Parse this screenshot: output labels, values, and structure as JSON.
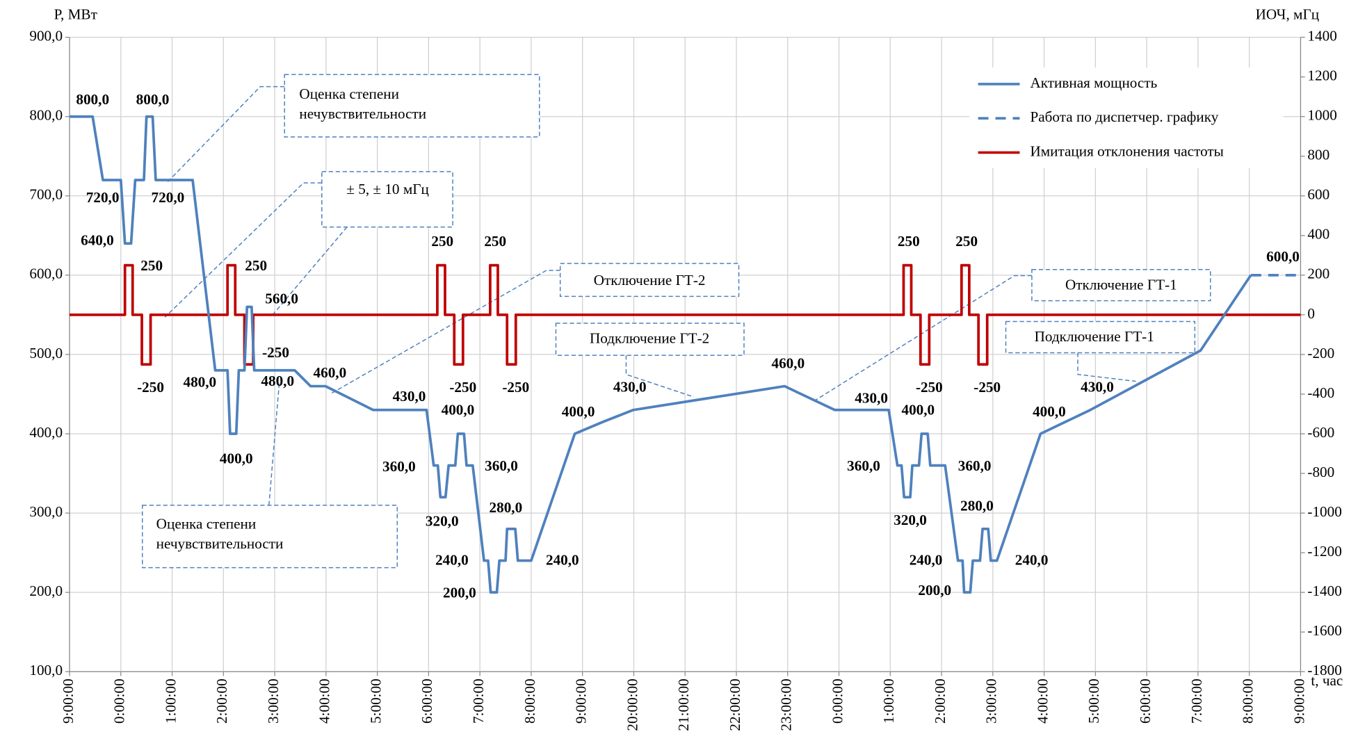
{
  "chart_data": {
    "type": "line",
    "y_label": "P,  МВт",
    "y2_label": "ИОЧ, мГц",
    "x_label": "t, час",
    "xlim": [
      0,
      24
    ],
    "xticks": [
      {
        "value": 0,
        "label": "9:00:00"
      },
      {
        "value": 1,
        "label": "0:00:00"
      },
      {
        "value": 2,
        "label": "1:00:00"
      },
      {
        "value": 3,
        "label": "2:00:00"
      },
      {
        "value": 4,
        "label": "3:00:00"
      },
      {
        "value": 5,
        "label": "4:00:00"
      },
      {
        "value": 6,
        "label": "5:00:00"
      },
      {
        "value": 7,
        "label": "6:00:00"
      },
      {
        "value": 8,
        "label": "7:00:00"
      },
      {
        "value": 9,
        "label": "8:00:00"
      },
      {
        "value": 10,
        "label": "9:00:00"
      },
      {
        "value": 11,
        "label": "20:00:00"
      },
      {
        "value": 12,
        "label": "21:00:00"
      },
      {
        "value": 13,
        "label": "22:00:00"
      },
      {
        "value": 14,
        "label": "23:00:00"
      },
      {
        "value": 15,
        "label": "0:00:00"
      },
      {
        "value": 16,
        "label": "1:00:00"
      },
      {
        "value": 17,
        "label": "2:00:00"
      },
      {
        "value": 18,
        "label": "3:00:00"
      },
      {
        "value": 19,
        "label": "4:00:00"
      },
      {
        "value": 20,
        "label": "5:00:00"
      },
      {
        "value": 21,
        "label": "6:00:00"
      },
      {
        "value": 22,
        "label": "7:00:00"
      },
      {
        "value": 23,
        "label": "8:00:00"
      },
      {
        "value": 24,
        "label": "9:00:00"
      }
    ],
    "ylim": [
      100,
      900
    ],
    "yticks": [
      {
        "value": 100,
        "label": "100,0"
      },
      {
        "value": 200,
        "label": "200,0"
      },
      {
        "value": 300,
        "label": "300,0"
      },
      {
        "value": 400,
        "label": "400,0"
      },
      {
        "value": 500,
        "label": "500,0"
      },
      {
        "value": 600,
        "label": "600,0"
      },
      {
        "value": 700,
        "label": "700,0"
      },
      {
        "value": 800,
        "label": "800,0"
      },
      {
        "value": 900,
        "label": "900,0"
      }
    ],
    "y2lim": [
      -1800,
      1400
    ],
    "y2ticks": [
      -1800,
      -1600,
      -1400,
      -1200,
      -1000,
      -800,
      -600,
      -400,
      -200,
      0,
      200,
      400,
      600,
      800,
      1000,
      1200,
      1400
    ],
    "grid": true,
    "legend": "top-right",
    "series": [
      {
        "name": "Активная мощность",
        "color": "#4f81bd",
        "style": "solid",
        "x": [
          0,
          0.45,
          0.65,
          1.0,
          1.08,
          1.2,
          1.28,
          1.45,
          1.5,
          1.62,
          1.68,
          2.4,
          2.84,
          3.08,
          3.13,
          3.25,
          3.3,
          3.41,
          3.46,
          3.55,
          3.6,
          4.39,
          4.7,
          4.99,
          5.92,
          6.96,
          7.1,
          7.18,
          7.23,
          7.33,
          7.39,
          7.52,
          7.57,
          7.69,
          7.74,
          7.86,
          8.08,
          8.16,
          8.21,
          8.33,
          8.38,
          8.5,
          8.53,
          8.69,
          8.74,
          9.0,
          9.85,
          10.4,
          10.99,
          13.94,
          14.92,
          15.97,
          16.14,
          16.22,
          16.27,
          16.39,
          16.43,
          16.56,
          16.61,
          16.73,
          16.78,
          17.07,
          17.32,
          17.41,
          17.44,
          17.56,
          17.61,
          17.75,
          17.8,
          17.91,
          17.96,
          18.08,
          18.93,
          19.9,
          22.05,
          23.03
        ],
        "values": [
          800,
          800,
          720,
          720,
          640,
          640,
          720,
          720,
          800,
          800,
          720,
          720,
          480,
          480,
          400,
          400,
          480,
          480,
          560,
          560,
          480,
          480,
          460,
          460,
          430,
          430,
          360,
          360,
          320,
          320,
          360,
          360,
          400,
          400,
          360,
          360,
          240,
          240,
          200,
          200,
          240,
          240,
          280,
          280,
          240,
          240,
          400,
          415,
          430,
          460,
          430,
          430,
          360,
          360,
          320,
          320,
          360,
          360,
          400,
          400,
          360,
          360,
          240,
          240,
          200,
          200,
          240,
          240,
          280,
          280,
          240,
          240,
          400,
          430,
          505,
          600
        ],
        "value_labels": [
          null,
          "800,0",
          null,
          "720,0",
          null,
          "640,0",
          null,
          null,
          null,
          "800,0",
          "720,0",
          null,
          null,
          "480,0",
          null,
          "400,0",
          null,
          null,
          "560,0",
          null,
          "480,0",
          null,
          null,
          "460,0",
          null,
          "430,0",
          "360,0",
          null,
          null,
          "320,0",
          null,
          null,
          "400,0",
          null,
          null,
          "360,0",
          "240,0",
          null,
          null,
          "200,0",
          null,
          null,
          null,
          "280,0",
          null,
          "240,0",
          "400,0",
          null,
          "430,0",
          "460,0",
          null,
          "430,0",
          "360,0",
          null,
          null,
          "320,0",
          null,
          null,
          "400,0",
          null,
          null,
          "360,0",
          "240,0",
          null,
          null,
          "200,0",
          null,
          null,
          null,
          "280,0",
          null,
          "240,0",
          "400,0",
          "430,0",
          null,
          "600,0"
        ]
      },
      {
        "name": "Работа по диспетчер. графику",
        "color": "#4f81bd",
        "style": "dashed",
        "x": [
          23.03,
          24
        ],
        "values": [
          600,
          600
        ]
      },
      {
        "name": "Имитация отклонения частоты",
        "color": "#c00000",
        "style": "solid",
        "axis": "y2",
        "x": [
          0,
          1.08,
          1.08,
          1.23,
          1.23,
          1.41,
          1.41,
          1.58,
          1.58,
          3.08,
          3.08,
          3.23,
          3.23,
          3.41,
          3.41,
          3.58,
          3.58,
          7.17,
          7.17,
          7.32,
          7.32,
          7.5,
          7.5,
          7.67,
          7.67,
          8.2,
          8.2,
          8.35,
          8.35,
          8.53,
          8.53,
          8.7,
          8.7,
          16.26,
          16.26,
          16.41,
          16.41,
          16.59,
          16.59,
          16.76,
          16.76,
          17.39,
          17.39,
          17.54,
          17.54,
          17.72,
          17.72,
          17.89,
          17.89,
          24
        ],
        "values": [
          0,
          0,
          250,
          250,
          0,
          0,
          -250,
          -250,
          0,
          0,
          250,
          250,
          0,
          0,
          -250,
          -250,
          0,
          0,
          250,
          250,
          0,
          0,
          -250,
          -250,
          0,
          0,
          250,
          250,
          0,
          0,
          -250,
          -250,
          0,
          0,
          250,
          250,
          0,
          0,
          -250,
          -250,
          0,
          0,
          250,
          250,
          0,
          0,
          -250,
          -250,
          0,
          0
        ],
        "value_labels": [
          null,
          null,
          null,
          "250",
          null,
          null,
          null,
          "-250",
          null,
          null,
          null,
          "250",
          null,
          null,
          null,
          "-250",
          null,
          null,
          null,
          "250",
          null,
          null,
          null,
          "-250",
          null,
          null,
          null,
          "250",
          null,
          null,
          null,
          "-250",
          null,
          null,
          null,
          "250",
          null,
          null,
          null,
          "-250",
          null,
          null,
          null,
          "250",
          null,
          null,
          null,
          "-250",
          null,
          null
        ]
      }
    ],
    "annotations": [
      {
        "text": [
          "Оценка степени",
          "нечувствительности"
        ]
      },
      {
        "text": [
          "± 5, ± 10 мГц"
        ]
      },
      {
        "text": [
          "Отключение ГТ-2"
        ]
      },
      {
        "text": [
          "Подключение ГТ-2"
        ]
      },
      {
        "text": [
          "Отключение ГТ-1"
        ]
      },
      {
        "text": [
          "Подключение ГТ-1"
        ]
      },
      {
        "text": [
          "Оценка степени",
          "нечувствительности"
        ]
      }
    ]
  }
}
